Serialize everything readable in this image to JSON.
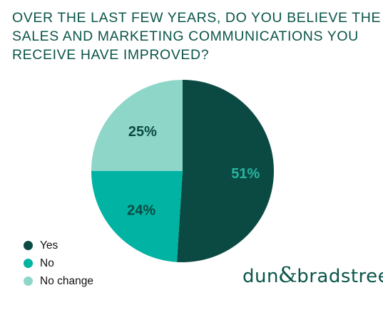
{
  "chart_data": {
    "type": "pie",
    "title_lines": [
      "OVER THE LAST FEW YEARS, DO YOU BELIEVE THE",
      "SALES AND MARKETING COMMUNICATIONS YOU",
      "RECEIVE HAVE IMPROVED?"
    ],
    "slices": [
      {
        "name": "Yes",
        "value": 51,
        "label": "51%",
        "color": "#0b4a42",
        "label_color": "#27b5a3"
      },
      {
        "name": "No",
        "value": 24,
        "label": "24%",
        "color": "#00b3a2",
        "label_color": "#0b4a42"
      },
      {
        "name": "No change",
        "value": 25,
        "label": "25%",
        "color": "#8ed6c8",
        "label_color": "#0b4a42"
      }
    ],
    "legend_position": "bottom-left"
  },
  "brand": {
    "part1": "dun",
    "amp": "&",
    "part2": "bradstreet"
  }
}
